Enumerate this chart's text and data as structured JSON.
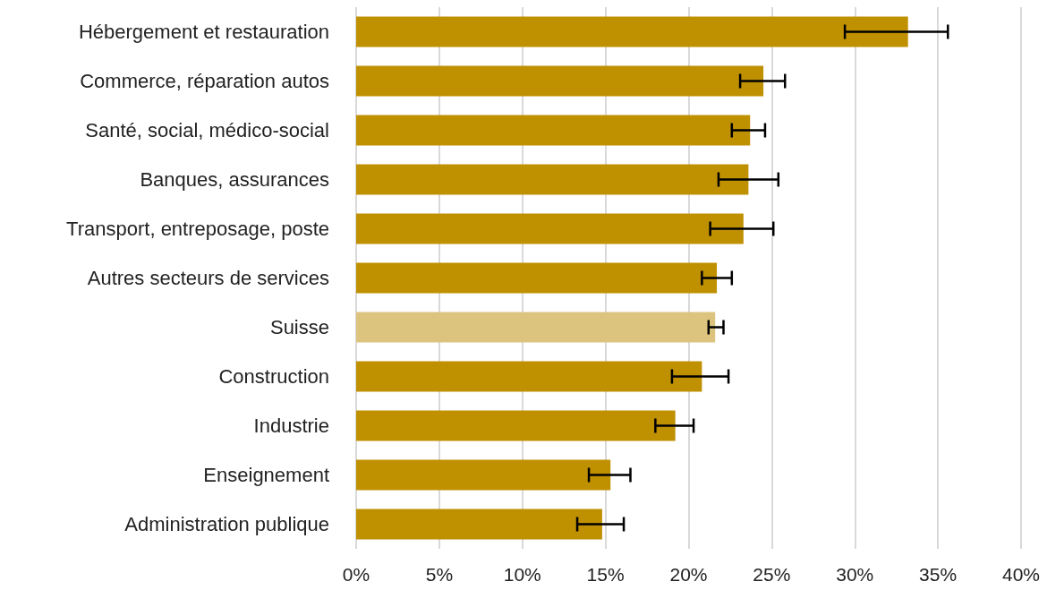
{
  "chart_data": {
    "type": "bar",
    "orientation": "horizontal",
    "categories": [
      "Hébergement et restauration",
      "Commerce, réparation autos",
      "Santé, social, médico-social",
      "Banques, assurances",
      "Transport, entreposage, poste",
      "Autres secteurs de services",
      "Suisse",
      "Construction",
      "Industrie",
      "Enseignement",
      "Administration publique"
    ],
    "values": [
      33.2,
      24.5,
      23.7,
      23.6,
      23.3,
      21.7,
      21.6,
      20.8,
      19.2,
      15.3,
      14.8
    ],
    "colors": [
      "#bf9000",
      "#bf9000",
      "#bf9000",
      "#bf9000",
      "#bf9000",
      "#bf9000",
      "#dcc47e",
      "#bf9000",
      "#bf9000",
      "#bf9000",
      "#bf9000"
    ],
    "errors": [
      [
        29.4,
        35.6
      ],
      [
        23.1,
        25.8
      ],
      [
        22.6,
        24.6
      ],
      [
        21.8,
        25.4
      ],
      [
        21.3,
        25.1
      ],
      [
        20.8,
        22.6
      ],
      [
        21.2,
        22.1
      ],
      [
        19.0,
        22.4
      ],
      [
        18.0,
        20.3
      ],
      [
        14.0,
        16.5
      ],
      [
        13.3,
        16.1
      ]
    ],
    "xlim": [
      0,
      40
    ],
    "xticks": [
      {
        "value": 0,
        "label": "0%"
      },
      {
        "value": 5,
        "label": "5%"
      },
      {
        "value": 10,
        "label": "10%"
      },
      {
        "value": 15,
        "label": "15%"
      },
      {
        "value": 20,
        "label": "20%"
      },
      {
        "value": 25,
        "label": "25%"
      },
      {
        "value": 30,
        "label": "30%"
      },
      {
        "value": 35,
        "label": "35%"
      },
      {
        "value": 40,
        "label": "40%"
      }
    ],
    "grid": "x"
  }
}
